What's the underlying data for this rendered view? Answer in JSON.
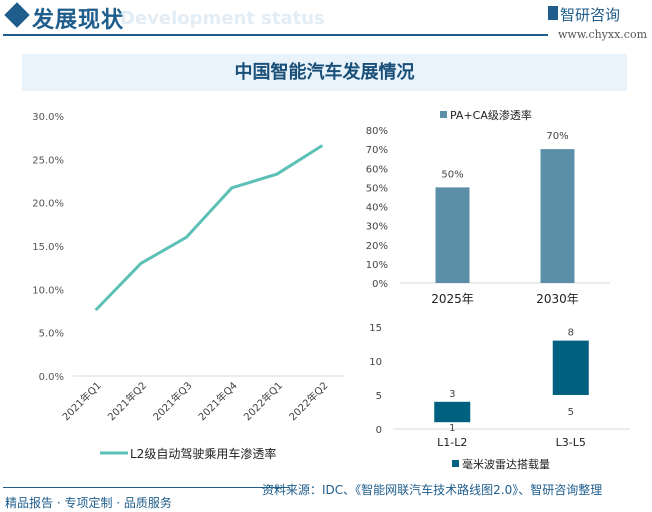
{
  "header": {
    "title": "发展现状",
    "subtitle": "Development status",
    "brand": "智研咨询",
    "url": "www.chyxx.com"
  },
  "band_title": "中国智能汽车发展情况",
  "footer": {
    "left": "精品报告 · 专项定制 · 品质服务",
    "source": "资料来源：IDC、《智能网联汽车技术路线图2.0》、智研咨询整理"
  },
  "chart_data": [
    {
      "type": "line",
      "categories": [
        "2021年Q1",
        "2021年Q2",
        "2021年Q3",
        "2021年Q4",
        "2022年Q1",
        "2022年Q2"
      ],
      "series": [
        {
          "name": "L2级自动驾驶乘用车渗透率",
          "values": [
            7.6,
            13.0,
            16.0,
            21.7,
            23.3,
            26.6
          ],
          "color": "#5bc0b5"
        }
      ],
      "yticks": [
        "0.0%",
        "5.0%",
        "10.0%",
        "15.0%",
        "20.0%",
        "25.0%",
        "30.0%"
      ],
      "ylim": [
        0,
        30
      ],
      "legend": "bottom",
      "grid": true
    },
    {
      "type": "bar",
      "categories": [
        "2025年",
        "2030年"
      ],
      "series": [
        {
          "name": "PA+CA级渗透率",
          "values": [
            50,
            70
          ],
          "color": "#5b8fa8"
        }
      ],
      "data_labels": [
        "50%",
        "70%"
      ],
      "yticks": [
        "0%",
        "10%",
        "20%",
        "30%",
        "40%",
        "50%",
        "60%",
        "70%",
        "80%"
      ],
      "ylim": [
        0,
        80
      ],
      "legend": "top",
      "grid": false
    },
    {
      "type": "bar",
      "subtype": "floating",
      "categories": [
        "L1-L2",
        "L3-L5"
      ],
      "series": [
        {
          "name": "毫米波雷达搭载量",
          "base": [
            1,
            5
          ],
          "span": [
            3,
            8
          ],
          "color": "#00607f"
        }
      ],
      "yticks": [
        "0",
        "5",
        "10",
        "15"
      ],
      "ylim": [
        0,
        15
      ],
      "legend": "bottom",
      "grid": false
    }
  ]
}
